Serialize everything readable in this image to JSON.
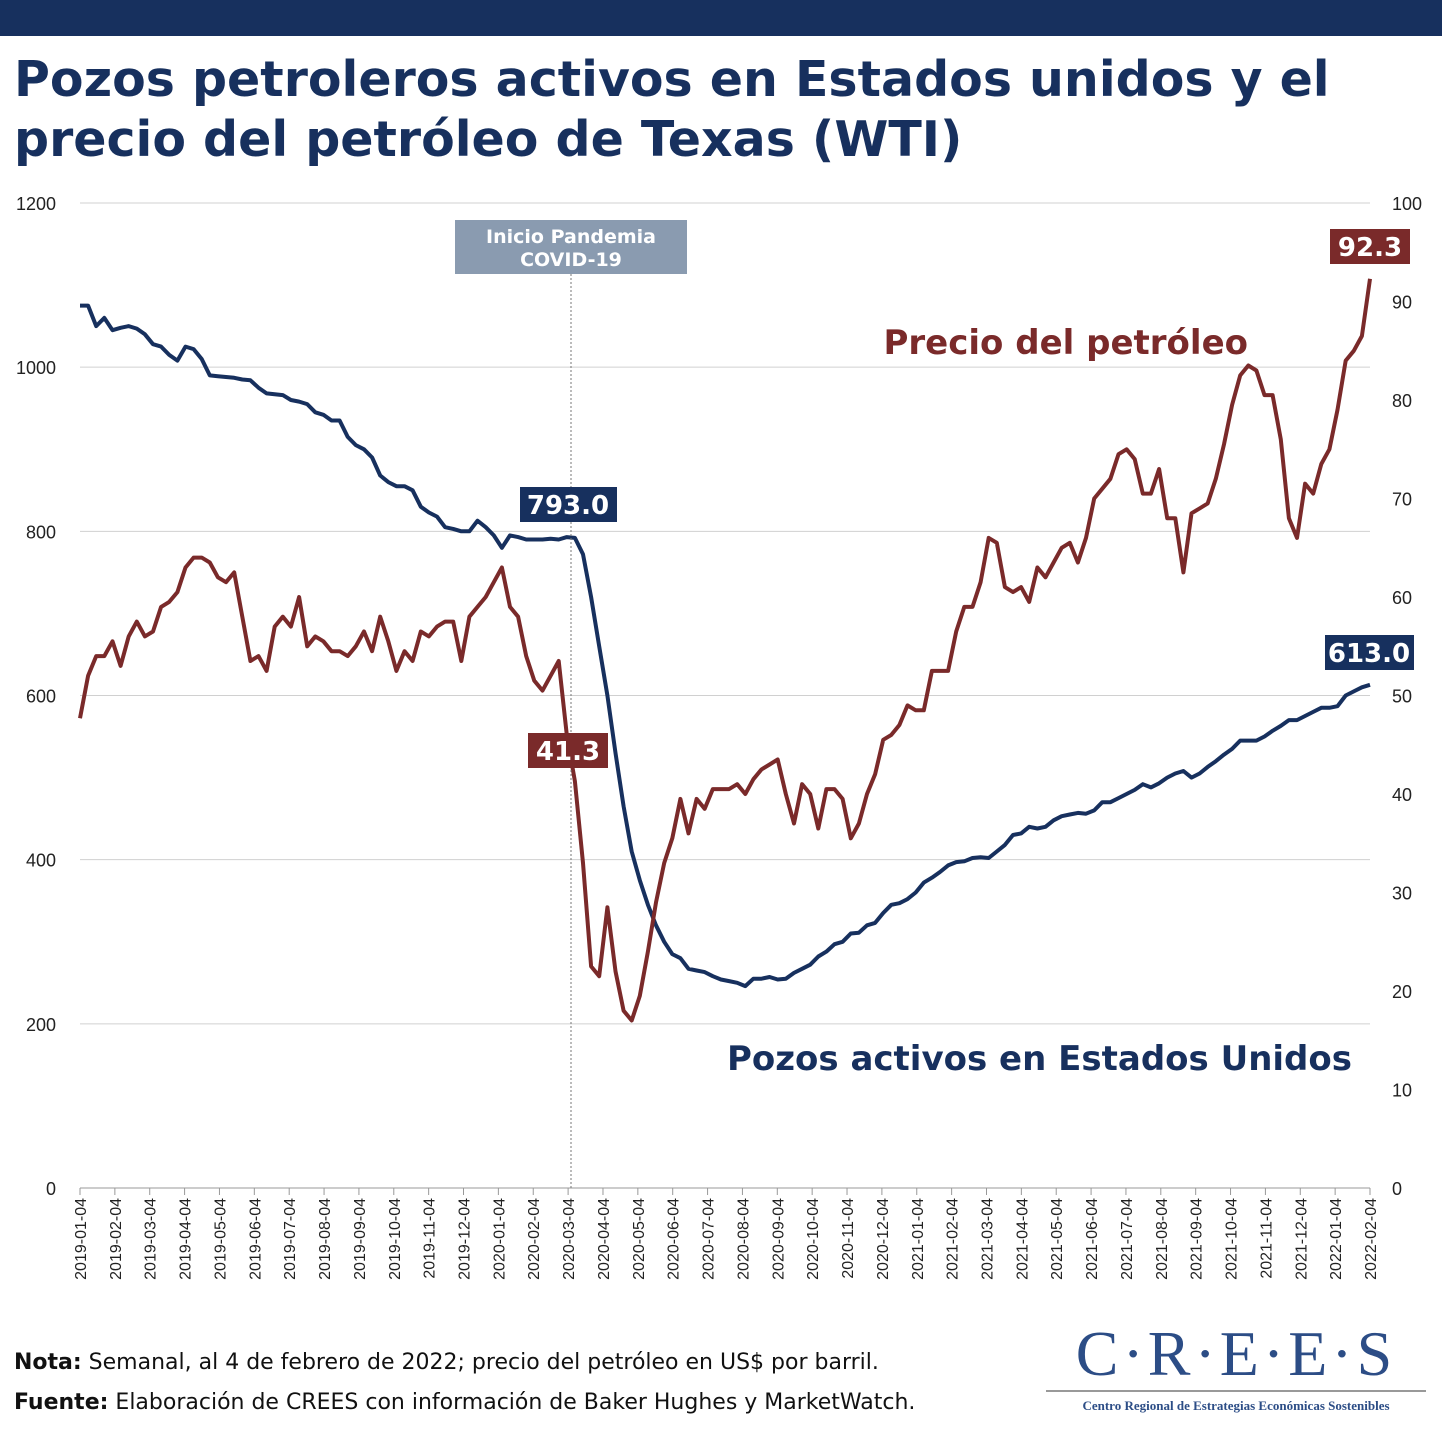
{
  "title": "Pozos petroleros activos en Estados unidos y el precio del petróleo de Texas (WTI)",
  "colors": {
    "rigs": "#17305e",
    "price": "#7a2a2a",
    "event": "#8a9bb0"
  },
  "chart_data": {
    "type": "line",
    "title": "Pozos petroleros activos en Estados unidos y el precio del petróleo de Texas (WTI)",
    "x_start": "2019-01-04",
    "x_end": "2022-02-04",
    "x_ticks": [
      "2019-01-04",
      "2019-02-04",
      "2019-03-04",
      "2019-04-04",
      "2019-05-04",
      "2019-06-04",
      "2019-07-04",
      "2019-08-04",
      "2019-09-04",
      "2019-10-04",
      "2019-11-04",
      "2019-12-04",
      "2020-01-04",
      "2020-02-04",
      "2020-03-04",
      "2020-04-04",
      "2020-05-04",
      "2020-06-04",
      "2020-07-04",
      "2020-08-04",
      "2020-09-04",
      "2020-10-04",
      "2020-11-04",
      "2020-12-04",
      "2021-01-04",
      "2021-02-04",
      "2021-03-04",
      "2021-04-04",
      "2021-05-04",
      "2021-06-04",
      "2021-07-04",
      "2021-08-04",
      "2021-09-04",
      "2021-10-04",
      "2021-11-04",
      "2021-12-04",
      "2022-01-04",
      "2022-02-04"
    ],
    "y_left": {
      "ticks": [
        "0",
        "200",
        "400",
        "600",
        "800",
        "1000",
        "1200"
      ],
      "ylim": [
        0,
        1200
      ]
    },
    "y_right": {
      "ticks": [
        "0",
        "10",
        "20",
        "30",
        "40",
        "50",
        "60",
        "70",
        "80",
        "90",
        "100"
      ],
      "ylim": [
        0,
        100
      ]
    },
    "series": [
      {
        "name": "Pozos activos en Estados Unidos",
        "axis": "left",
        "values": [
          1075,
          1075,
          1050,
          1060,
          1045,
          1048,
          1050,
          1047,
          1040,
          1028,
          1025,
          1015,
          1008,
          1025,
          1022,
          1010,
          990,
          989,
          988,
          987,
          985,
          984,
          975,
          968,
          967,
          966,
          960,
          958,
          955,
          945,
          942,
          935,
          935,
          915,
          905,
          900,
          890,
          868,
          860,
          855,
          855,
          850,
          830,
          823,
          818,
          805,
          803,
          800,
          800,
          813,
          805,
          795,
          780,
          795,
          793,
          790,
          790,
          790,
          791,
          790,
          793,
          792,
          772,
          720,
          660,
          600,
          530,
          465,
          410,
          375,
          345,
          320,
          300,
          285,
          280,
          267,
          265,
          263,
          258,
          254,
          252,
          250,
          246,
          255,
          255,
          257,
          254,
          255,
          262,
          267,
          272,
          282,
          288,
          297,
          300,
          310,
          311,
          320,
          323,
          335,
          345,
          347,
          352,
          360,
          372,
          378,
          385,
          393,
          397,
          398,
          402,
          403,
          402,
          410,
          418,
          430,
          432,
          440,
          438,
          440,
          448,
          453,
          455,
          457,
          456,
          460,
          470,
          470,
          475,
          480,
          485,
          492,
          488,
          493,
          500,
          505,
          508,
          500,
          505,
          513,
          520,
          528,
          535,
          545,
          545,
          545,
          550,
          557,
          563,
          570,
          570,
          575,
          580,
          585,
          585,
          587,
          600,
          605,
          610,
          613
        ]
      },
      {
        "name": "Precio del petróleo",
        "axis": "right",
        "values": [
          47.7,
          52,
          54,
          54,
          55.5,
          53,
          56,
          57.5,
          56,
          56.5,
          59,
          59.5,
          60.5,
          63,
          64,
          64,
          63.5,
          62,
          61.5,
          62.5,
          58,
          53.5,
          54,
          52.5,
          57,
          58,
          57,
          60,
          55,
          56,
          55.5,
          54.5,
          54.5,
          54,
          55,
          56.5,
          54.5,
          58,
          55.5,
          52.5,
          54.5,
          53.5,
          56.5,
          56,
          57,
          57.5,
          57.5,
          53.5,
          58,
          59,
          60,
          61.5,
          63,
          59,
          58,
          54,
          51.5,
          50.5,
          52,
          53.5,
          46,
          41.3,
          33,
          22.5,
          21.5,
          28.5,
          22,
          18,
          17,
          19.5,
          24,
          29,
          33,
          35.5,
          39.5,
          36,
          39.5,
          38.5,
          40.5,
          40.5,
          40.5,
          41,
          40,
          41.5,
          42.5,
          43,
          43.5,
          40,
          37,
          41,
          40,
          36.5,
          40.5,
          40.5,
          39.5,
          35.5,
          37,
          40,
          42,
          45.5,
          46,
          47,
          49,
          48.5,
          48.5,
          52.5,
          52.5,
          52.5,
          56.5,
          59,
          59,
          61.5,
          66,
          65.5,
          61,
          60.5,
          61,
          59.5,
          63,
          62,
          63.5,
          65,
          65.5,
          63.5,
          66,
          70,
          71,
          72,
          74.5,
          75,
          74,
          70.5,
          70.5,
          73,
          68,
          68,
          62.5,
          68.5,
          69,
          69.5,
          72,
          75.5,
          79.5,
          82.5,
          83.5,
          83,
          80.5,
          80.5,
          76,
          68,
          66,
          71.5,
          70.5,
          73.5,
          75,
          79,
          84,
          85,
          86.5,
          92.3
        ]
      }
    ],
    "annotations": {
      "event": [
        "Inicio Pandemia",
        "COVID-19"
      ],
      "event_date": "2020-03-04",
      "rigs_covid": "793.0",
      "price_covid": "41.3",
      "rigs_last": "613.0",
      "price_last": "92.3",
      "label_price": "Precio del petróleo",
      "label_rigs": "Pozos activos en Estados Unidos"
    }
  },
  "footer": {
    "nota_label": "Nota:",
    "nota": " Semanal, al 4 de febrero de 2022; precio del petróleo en US$ por barril.",
    "fuente_label": "Fuente:",
    "fuente": " Elaboración de CREES con información de Baker Hughes y MarketWatch."
  },
  "logo": {
    "name": "C·R·E·E·S",
    "subtitle": "Centro Regional de Estrategias Económicas Sostenibles"
  }
}
